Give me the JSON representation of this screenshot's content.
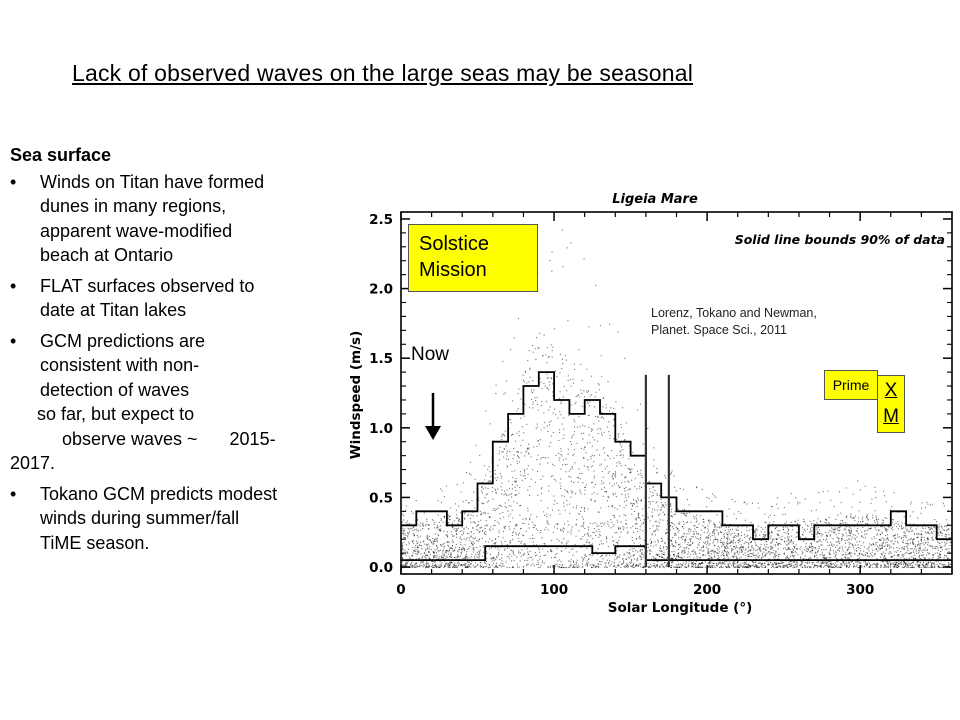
{
  "slide": {
    "title": "Lack of observed waves on the large seas may be seasonal"
  },
  "text_panel": {
    "heading": "Sea surface",
    "bullets": [
      {
        "lines": [
          "Winds on Titan have formed",
          "dunes in many regions,",
          "apparent wave-modified",
          "beach at Ontario"
        ]
      },
      {
        "lines": [
          "FLAT surfaces observed to",
          "date at Titan lakes"
        ]
      },
      {
        "lines": [
          "GCM predictions are",
          "consistent with non-",
          "detection of waves"
        ]
      },
      {
        "lines": [
          "Tokano GCM predicts modest",
          "winds during summer/fall",
          "TiME   season."
        ]
      }
    ],
    "continuation": {
      "line1": "so far, but expect to",
      "line2_text": "observe waves ~",
      "line2_year": "2015-",
      "line3": "2017."
    }
  },
  "annotations": {
    "solstice_line1": "Solstice",
    "solstice_line2": "Mission",
    "now": "Now",
    "citation_line1": "Lorenz, Tokano and Newman,",
    "citation_line2": "Planet. Space Sci.,  2011",
    "prime": "Prime",
    "xm_line1": "X",
    "xm_line2": "M",
    "box_color": "#ffff00"
  },
  "chart_data": {
    "type": "scatter",
    "title": "Ligeia Mare",
    "legend_text": "Solid line bounds 90% of data",
    "xlabel": "Solar Longitude (°)",
    "ylabel": "Windspeed (m/s)",
    "xlim": [
      0,
      360
    ],
    "ylim": [
      -0.05,
      2.55
    ],
    "xticks": [
      0,
      100,
      200,
      300
    ],
    "yticks": [
      0.0,
      0.5,
      1.0,
      1.5,
      2.0,
      2.5
    ],
    "ytick_labels": [
      "0.0",
      "0.5",
      "1.0",
      "1.5",
      "2.0",
      "2.5"
    ],
    "grid": false,
    "point_color": "#000000",
    "upper_bound": {
      "name": "upper 90% bound",
      "x": [
        0,
        10,
        20,
        30,
        40,
        50,
        60,
        70,
        80,
        90,
        100,
        110,
        120,
        130,
        140,
        150,
        160,
        170,
        180,
        190,
        200,
        210,
        220,
        230,
        240,
        250,
        260,
        270,
        280,
        290,
        300,
        310,
        320,
        330,
        340,
        350,
        360
      ],
      "y": [
        0.3,
        0.4,
        0.4,
        0.3,
        0.4,
        0.6,
        0.9,
        1.1,
        1.3,
        1.4,
        1.2,
        1.1,
        1.2,
        1.1,
        0.9,
        0.8,
        0.6,
        0.5,
        0.4,
        0.4,
        0.4,
        0.3,
        0.3,
        0.2,
        0.3,
        0.3,
        0.2,
        0.3,
        0.3,
        0.3,
        0.3,
        0.3,
        0.4,
        0.3,
        0.3,
        0.2,
        0.2
      ]
    },
    "lower_bound": {
      "name": "lower 90% bound",
      "x": [
        0,
        55,
        100,
        125,
        140,
        160,
        175,
        200,
        360
      ],
      "y": [
        0.05,
        0.15,
        0.15,
        0.1,
        0.15,
        0.05,
        0.05,
        0.05,
        0.05
      ]
    },
    "solstice_lines_x": [
      160,
      175
    ],
    "scatter_envelope": {
      "x": [
        0,
        20,
        40,
        50,
        60,
        70,
        80,
        90,
        100,
        110,
        120,
        130,
        140,
        150,
        160,
        170,
        180,
        200,
        220,
        240,
        260,
        280,
        300,
        320,
        340,
        360
      ],
      "y": [
        0.35,
        0.35,
        0.4,
        0.6,
        0.8,
        1.1,
        1.5,
        1.75,
        1.6,
        1.5,
        1.45,
        1.3,
        1.1,
        0.9,
        0.65,
        0.5,
        0.45,
        0.35,
        0.3,
        0.3,
        0.35,
        0.35,
        0.4,
        0.35,
        0.3,
        0.3
      ]
    }
  }
}
